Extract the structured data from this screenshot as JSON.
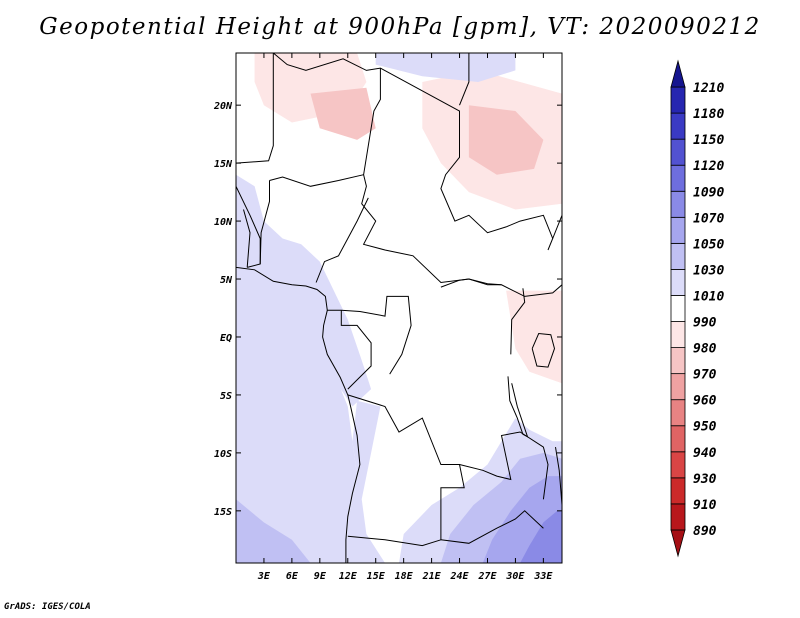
{
  "title": "Geopotential Height at 900hPa [gpm], VT: 2020090212",
  "credit": "GrADS: IGES/COLA",
  "lat_labels": [
    "20N",
    "15N",
    "10N",
    "5N",
    "EQ",
    "5S",
    "10S",
    "15S"
  ],
  "lat_values": [
    20,
    15,
    10,
    5,
    0,
    -5,
    -10,
    -15
  ],
  "lon_labels": [
    "3E",
    "6E",
    "9E",
    "12E",
    "15E",
    "18E",
    "21E",
    "24E",
    "27E",
    "30E",
    "33E"
  ],
  "lon_values": [
    3,
    6,
    9,
    12,
    15,
    18,
    21,
    24,
    27,
    30,
    33
  ],
  "extent": {
    "lon_min": 0,
    "lon_max": 35,
    "lat_min": -19.5,
    "lat_max": 24.5
  },
  "colorbar": {
    "levels": [
      "890",
      "910",
      "930",
      "940",
      "950",
      "960",
      "970",
      "980",
      "990",
      "1010",
      "1030",
      "1050",
      "1070",
      "1090",
      "1120",
      "1150",
      "1180",
      "1210"
    ],
    "colors": [
      "#a50f15",
      "#b8171c",
      "#cb2a2a",
      "#d94545",
      "#e06464",
      "#e88383",
      "#efa2a2",
      "#f6c5c5",
      "#fde6e6",
      "#ffffff",
      "#dcdcf9",
      "#c0c0f3",
      "#a6a6ee",
      "#8a8ae6",
      "#6e6ede",
      "#5252d1",
      "#3a3ac4",
      "#2626b0",
      "#15158f"
    ]
  },
  "regions": [
    {
      "name": "ocean-atlantic",
      "color": "#dcdcf9",
      "poly": [
        [
          0,
          6
        ],
        [
          3,
          6
        ],
        [
          6,
          5
        ],
        [
          8.5,
          4.5
        ],
        [
          9.5,
          3
        ],
        [
          9.5,
          0
        ],
        [
          10.5,
          -3
        ],
        [
          12,
          -6
        ],
        [
          12.5,
          -9
        ],
        [
          13,
          -12
        ],
        [
          12,
          -16
        ],
        [
          12,
          -19.5
        ],
        [
          0,
          -19.5
        ]
      ]
    },
    {
      "name": "gulf-low-lat",
      "color": "#dcdcf9",
      "poly": [
        [
          0,
          14
        ],
        [
          2,
          13
        ],
        [
          3,
          10
        ],
        [
          5,
          8.5
        ],
        [
          7,
          8
        ],
        [
          9,
          6.5
        ],
        [
          10.5,
          4
        ],
        [
          12,
          1.5
        ],
        [
          13.5,
          -2
        ],
        [
          14.5,
          -4.5
        ],
        [
          12.5,
          -6
        ],
        [
          10,
          -3
        ],
        [
          9,
          2
        ],
        [
          8,
          4
        ],
        [
          5,
          5
        ],
        [
          2,
          5.5
        ],
        [
          0,
          5.5
        ]
      ]
    },
    {
      "name": "congo-coast-band",
      "color": "#dcdcf9",
      "poly": [
        [
          13,
          -5.5
        ],
        [
          15.5,
          -6
        ],
        [
          14.5,
          -10
        ],
        [
          13.5,
          -14
        ],
        [
          14,
          -17
        ],
        [
          16,
          -19.5
        ],
        [
          12,
          -19.5
        ],
        [
          12,
          -16
        ],
        [
          13,
          -12
        ],
        [
          12.5,
          -9
        ]
      ]
    },
    {
      "name": "south-band-light",
      "color": "#dcdcf9",
      "poly": [
        [
          17.5,
          -19.5
        ],
        [
          18,
          -17
        ],
        [
          21,
          -14.5
        ],
        [
          24,
          -13
        ],
        [
          27,
          -11
        ],
        [
          28.5,
          -9
        ],
        [
          30,
          -7
        ],
        [
          31.5,
          -8
        ],
        [
          34,
          -9
        ],
        [
          35,
          -9
        ],
        [
          35,
          -19.5
        ]
      ]
    },
    {
      "name": "south-band-mid",
      "color": "#c0c0f3",
      "poly": [
        [
          22,
          -19.5
        ],
        [
          23,
          -17
        ],
        [
          25.5,
          -14.5
        ],
        [
          28.5,
          -12.5
        ],
        [
          30.5,
          -10.5
        ],
        [
          33,
          -10
        ],
        [
          35,
          -10.5
        ],
        [
          35,
          -19.5
        ]
      ]
    },
    {
      "name": "south-band-strong",
      "color": "#a6a6ee",
      "poly": [
        [
          26.5,
          -19.5
        ],
        [
          27.5,
          -17.5
        ],
        [
          29.5,
          -15
        ],
        [
          31.5,
          -13
        ],
        [
          33.5,
          -12
        ],
        [
          35,
          -12
        ],
        [
          35,
          -19.5
        ]
      ]
    },
    {
      "name": "south-band-max",
      "color": "#8a8ae6",
      "poly": [
        [
          30.5,
          -19.5
        ],
        [
          31.5,
          -18
        ],
        [
          33,
          -16
        ],
        [
          34.5,
          -15
        ],
        [
          35,
          -15
        ],
        [
          35,
          -19.5
        ]
      ]
    },
    {
      "name": "sw-corner-light",
      "color": "#c0c0f3",
      "poly": [
        [
          0,
          -14
        ],
        [
          3,
          -16
        ],
        [
          6,
          -17.5
        ],
        [
          8,
          -19.5
        ],
        [
          0,
          -19.5
        ]
      ]
    },
    {
      "name": "north-rise",
      "color": "#fde6e6",
      "poly": [
        [
          2,
          24.5
        ],
        [
          13,
          24.5
        ],
        [
          14,
          22
        ],
        [
          12,
          19.5
        ],
        [
          6,
          18.5
        ],
        [
          3,
          20
        ],
        [
          2,
          22
        ]
      ]
    },
    {
      "name": "north-rise-2",
      "color": "#fde6e6",
      "poly": [
        [
          20,
          22
        ],
        [
          26,
          23
        ],
        [
          35,
          21
        ],
        [
          35,
          11.5
        ],
        [
          30,
          11
        ],
        [
          25,
          12.5
        ],
        [
          22,
          15
        ],
        [
          20,
          18
        ]
      ]
    },
    {
      "name": "north-rise-inner",
      "color": "#f6c5c5",
      "poly": [
        [
          25,
          20
        ],
        [
          30,
          19.5
        ],
        [
          33,
          17
        ],
        [
          32,
          14.5
        ],
        [
          28,
          14
        ],
        [
          25,
          15.5
        ]
      ]
    },
    {
      "name": "north-rise-3",
      "color": "#f6c5c5",
      "poly": [
        [
          8,
          21
        ],
        [
          14,
          21.5
        ],
        [
          15,
          18
        ],
        [
          13,
          17
        ],
        [
          9,
          18
        ]
      ]
    },
    {
      "name": "ne-top-blue",
      "color": "#dcdcf9",
      "poly": [
        [
          15,
          24.5
        ],
        [
          30,
          24.5
        ],
        [
          30,
          23
        ],
        [
          26,
          22
        ],
        [
          20,
          22.5
        ],
        [
          15,
          23.5
        ]
      ]
    },
    {
      "name": "lakes-pink",
      "color": "#fde6e6",
      "poly": [
        [
          29,
          4
        ],
        [
          35,
          4
        ],
        [
          35,
          -4
        ],
        [
          31.5,
          -3
        ],
        [
          30,
          -1
        ],
        [
          29.5,
          1.5
        ]
      ]
    }
  ],
  "borders": [
    {
      "name": "coastline-west",
      "pts": [
        [
          0,
          6
        ],
        [
          2,
          5.8
        ],
        [
          4,
          4.8
        ],
        [
          6,
          4.5
        ],
        [
          7.5,
          4.4
        ],
        [
          8.7,
          4.1
        ],
        [
          9.6,
          3.5
        ],
        [
          9.8,
          2.3
        ],
        [
          9.4,
          1
        ],
        [
          9.3,
          0
        ],
        [
          9.8,
          -1.5
        ],
        [
          11.2,
          -3.5
        ],
        [
          12,
          -5
        ],
        [
          12.3,
          -6
        ],
        [
          13,
          -8.5
        ],
        [
          13.3,
          -11
        ],
        [
          12.5,
          -13.5
        ],
        [
          12,
          -15.5
        ],
        [
          11.8,
          -17.5
        ],
        [
          11.8,
          -19.5
        ]
      ]
    },
    {
      "name": "coast-gulf-north",
      "pts": [
        [
          0,
          13
        ],
        [
          1.5,
          10.5
        ],
        [
          2.6,
          8.5
        ],
        [
          2.6,
          6.3
        ],
        [
          1.2,
          6
        ]
      ]
    },
    {
      "name": "lake-victoria",
      "pts": [
        [
          31.8,
          -1
        ],
        [
          32.5,
          0.3
        ],
        [
          33.8,
          0.2
        ],
        [
          34.2,
          -1
        ],
        [
          33.5,
          -2.6
        ],
        [
          32.3,
          -2.5
        ],
        [
          31.8,
          -1
        ]
      ]
    },
    {
      "name": "rift-lakes",
      "pts": [
        [
          29.2,
          -3.4
        ],
        [
          29.4,
          -5.5
        ],
        [
          30.2,
          -7
        ],
        [
          30.8,
          -8.4
        ],
        [
          31.3,
          -8.6
        ],
        [
          30.2,
          -6
        ],
        [
          29.6,
          -4
        ]
      ]
    },
    {
      "name": "lake-malawi",
      "pts": [
        [
          34.3,
          -9.5
        ],
        [
          34.7,
          -11.5
        ],
        [
          34.9,
          -13.5
        ],
        [
          35,
          -14.5
        ]
      ]
    },
    {
      "name": "border-sahel",
      "pts": [
        [
          4,
          24.5
        ],
        [
          5.5,
          23.5
        ],
        [
          7.5,
          23
        ],
        [
          11.5,
          24
        ],
        [
          14,
          23
        ],
        [
          15.5,
          23.2
        ],
        [
          24,
          19.5
        ],
        [
          24,
          15.5
        ],
        [
          22.5,
          14
        ],
        [
          22,
          12.8
        ],
        [
          23.5,
          10
        ],
        [
          25,
          10.5
        ],
        [
          27,
          9
        ],
        [
          29,
          9.5
        ],
        [
          30.5,
          10
        ],
        [
          33,
          10.5
        ],
        [
          34,
          8.5
        ],
        [
          33.5,
          7.5
        ]
      ]
    },
    {
      "name": "border-libya-sudan",
      "pts": [
        [
          25,
          24.5
        ],
        [
          25,
          22
        ],
        [
          24,
          20
        ]
      ]
    },
    {
      "name": "border-chad-niger",
      "pts": [
        [
          15.5,
          23.2
        ],
        [
          15.5,
          20.5
        ],
        [
          14.8,
          19.5
        ],
        [
          13.7,
          14
        ],
        [
          14,
          13
        ],
        [
          13.5,
          11.5
        ],
        [
          15,
          10
        ],
        [
          13.7,
          8
        ],
        [
          16,
          7.5
        ],
        [
          19,
          7
        ],
        [
          22,
          4.7
        ],
        [
          25,
          5
        ],
        [
          27,
          4.5
        ],
        [
          28.5,
          4.5
        ],
        [
          31,
          3.5
        ],
        [
          34,
          3.8
        ],
        [
          35,
          4.5
        ]
      ]
    },
    {
      "name": "border-niger-nigeria",
      "pts": [
        [
          3.6,
          13.5
        ],
        [
          5,
          13.8
        ],
        [
          8,
          13
        ],
        [
          11,
          13.5
        ],
        [
          13.7,
          14
        ]
      ]
    },
    {
      "name": "border-nigeria-cameroon",
      "pts": [
        [
          8.6,
          4.7
        ],
        [
          9.5,
          6.5
        ],
        [
          11,
          7
        ],
        [
          12,
          8.5
        ],
        [
          13,
          10
        ],
        [
          14.2,
          12
        ]
      ]
    },
    {
      "name": "border-cameroon-south",
      "pts": [
        [
          9.8,
          2.3
        ],
        [
          11.3,
          2.3
        ],
        [
          13.3,
          2.2
        ],
        [
          16,
          1.8
        ],
        [
          16.2,
          3.5
        ],
        [
          18.5,
          3.5
        ],
        [
          18.8,
          1
        ],
        [
          17.8,
          -1.5
        ],
        [
          16.5,
          -3.2
        ]
      ]
    },
    {
      "name": "border-gabon",
      "pts": [
        [
          11.3,
          2.3
        ],
        [
          11.3,
          1
        ],
        [
          13,
          1
        ],
        [
          14.5,
          -0.5
        ],
        [
          14.5,
          -2.5
        ],
        [
          12,
          -4.5
        ]
      ]
    },
    {
      "name": "border-drc-angola",
      "pts": [
        [
          12,
          -5
        ],
        [
          16,
          -6
        ],
        [
          17.5,
          -8.2
        ],
        [
          20,
          -7
        ],
        [
          22,
          -11
        ],
        [
          24,
          -11
        ],
        [
          24.5,
          -13
        ],
        [
          22,
          -13
        ],
        [
          22,
          -17.5
        ],
        [
          20,
          -18
        ],
        [
          16,
          -17.5
        ],
        [
          12,
          -17.2
        ]
      ]
    },
    {
      "name": "border-drc-zambia",
      "pts": [
        [
          24,
          -11
        ],
        [
          26.5,
          -11.5
        ],
        [
          28,
          -12
        ],
        [
          29.5,
          -12.3
        ],
        [
          28.5,
          -8.5
        ],
        [
          30.5,
          -8.2
        ],
        [
          33,
          -9.5
        ],
        [
          33.5,
          -11
        ],
        [
          33,
          -14
        ]
      ]
    },
    {
      "name": "border-zambia-south",
      "pts": [
        [
          22,
          -17.5
        ],
        [
          25,
          -17.8
        ],
        [
          28,
          -16.5
        ],
        [
          30,
          -15.7
        ],
        [
          31,
          -15
        ],
        [
          33,
          -16.5
        ]
      ]
    },
    {
      "name": "border-uganda",
      "pts": [
        [
          29.5,
          -1.5
        ],
        [
          29.6,
          1.5
        ],
        [
          31,
          3
        ],
        [
          30.8,
          4.2
        ]
      ]
    },
    {
      "name": "border-drc-east",
      "pts": [
        [
          28.5,
          4.5
        ],
        [
          27,
          4.6
        ],
        [
          25,
          5
        ],
        [
          24,
          4.9
        ],
        [
          22,
          4.3
        ]
      ]
    },
    {
      "name": "border-ghana-togo",
      "pts": [
        [
          0.8,
          11
        ],
        [
          1.5,
          9
        ],
        [
          1.2,
          6
        ]
      ]
    },
    {
      "name": "border-benin",
      "pts": [
        [
          2.6,
          6.3
        ],
        [
          2.7,
          9
        ],
        [
          3.6,
          11.7
        ],
        [
          3.6,
          13.5
        ]
      ]
    },
    {
      "name": "border-mali-niger",
      "pts": [
        [
          0,
          15
        ],
        [
          3.5,
          15.2
        ],
        [
          4,
          16.5
        ],
        [
          4,
          19.2
        ],
        [
          4,
          24.5
        ]
      ]
    },
    {
      "name": "border-kenya-sudan",
      "pts": [
        [
          34,
          8.5
        ],
        [
          35,
          10.5
        ]
      ]
    }
  ]
}
